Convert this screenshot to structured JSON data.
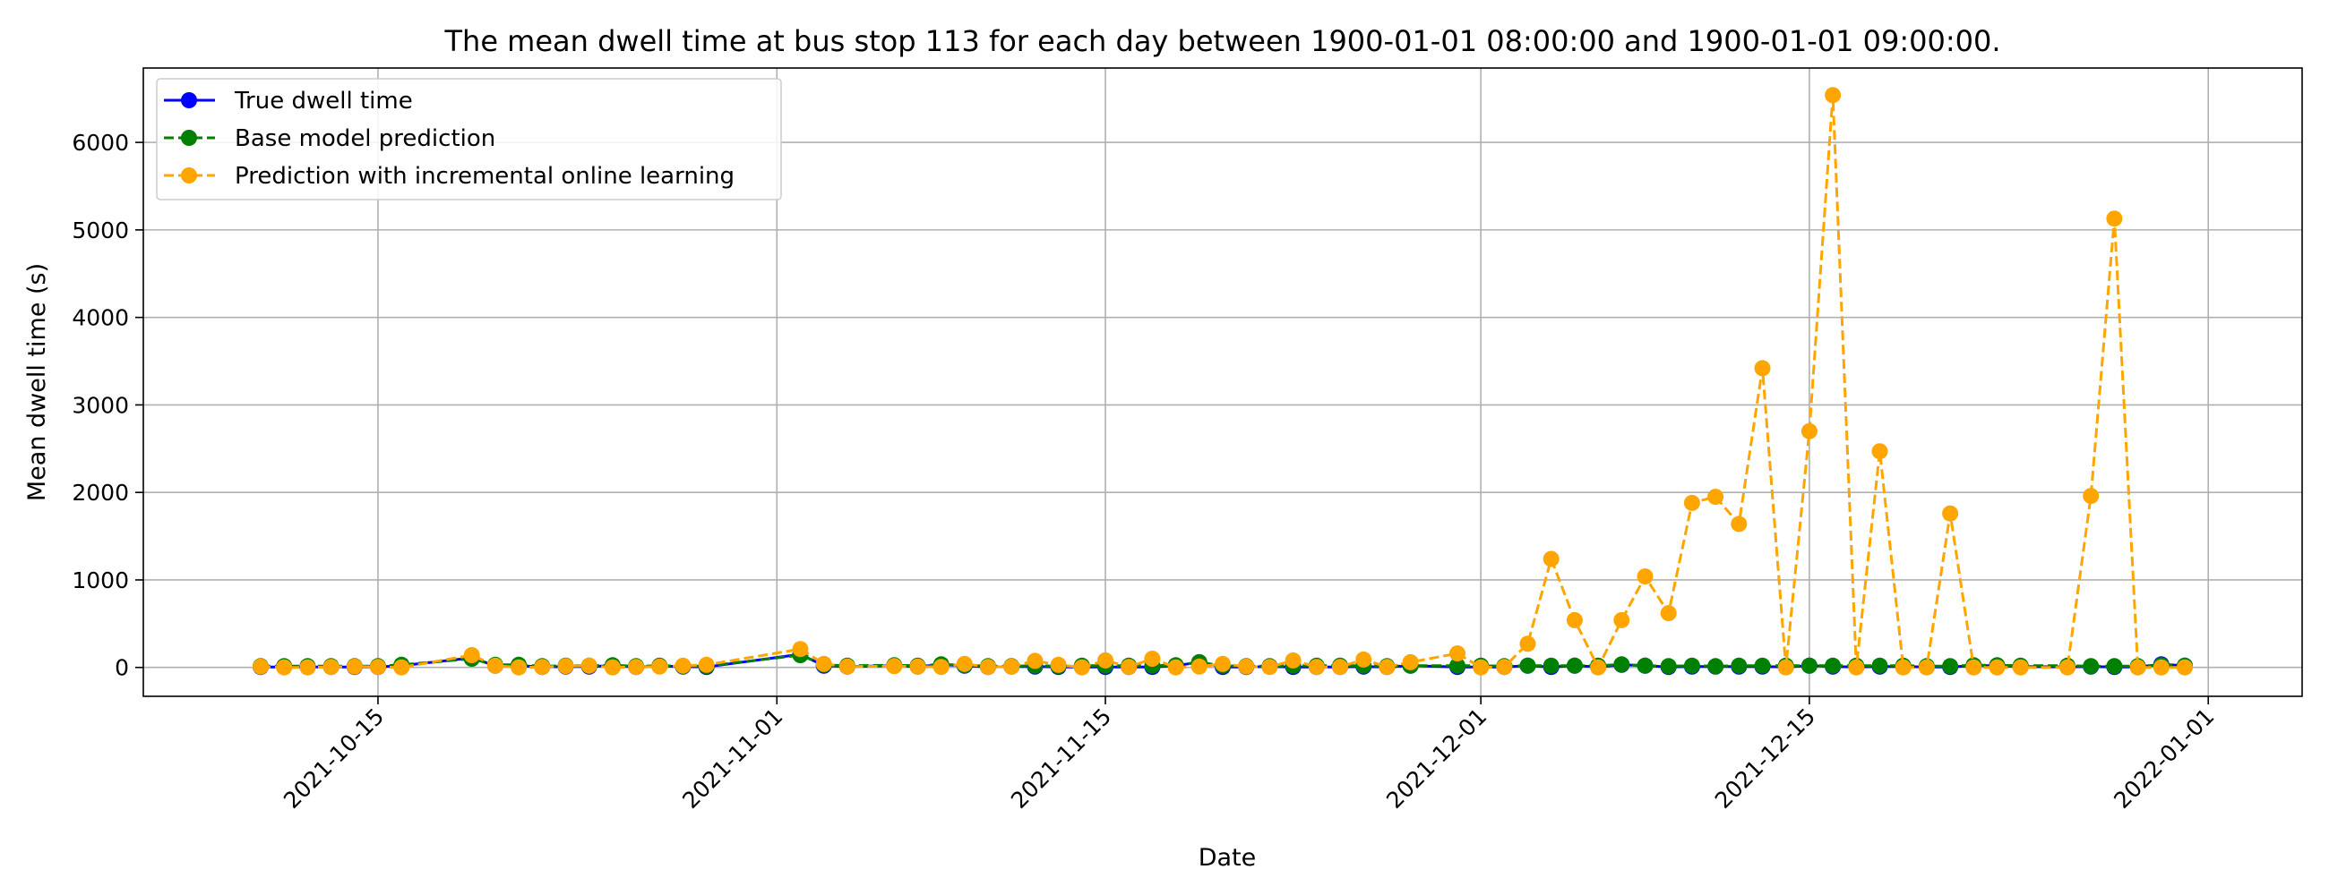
{
  "chart_data": {
    "type": "line",
    "title": "The mean dwell time at bus stop 113 for each day between 1900-01-01 08:00:00 and 1900-01-01 09:00:00.",
    "xlabel": "Date",
    "ylabel": "Mean dwell time (s)",
    "x_tick_labels": [
      "2021-10-15",
      "2021-11-01",
      "2021-11-15",
      "2021-12-01",
      "2021-12-15",
      "2022-01-01"
    ],
    "y_tick_labels": [
      "0",
      "1000",
      "2000",
      "3000",
      "4000",
      "5000",
      "6000"
    ],
    "xlim": [
      "2021-10-05",
      "2022-01-05"
    ],
    "ylim": [
      -330,
      6850
    ],
    "grid": true,
    "legend_position": "upper-left",
    "dates": [
      "2021-10-10",
      "2021-10-11",
      "2021-10-12",
      "2021-10-13",
      "2021-10-14",
      "2021-10-15",
      "2021-10-16",
      "2021-10-19",
      "2021-10-20",
      "2021-10-21",
      "2021-10-22",
      "2021-10-23",
      "2021-10-24",
      "2021-10-25",
      "2021-10-26",
      "2021-10-27",
      "2021-10-28",
      "2021-10-29",
      "2021-11-02",
      "2021-11-03",
      "2021-11-04",
      "2021-11-06",
      "2021-11-07",
      "2021-11-08",
      "2021-11-09",
      "2021-11-10",
      "2021-11-11",
      "2021-11-12",
      "2021-11-13",
      "2021-11-14",
      "2021-11-15",
      "2021-11-16",
      "2021-11-17",
      "2021-11-18",
      "2021-11-19",
      "2021-11-20",
      "2021-11-21",
      "2021-11-22",
      "2021-11-23",
      "2021-11-24",
      "2021-11-25",
      "2021-11-26",
      "2021-11-27",
      "2021-11-28",
      "2021-11-30",
      "2021-12-01",
      "2021-12-02",
      "2021-12-03",
      "2021-12-04",
      "2021-12-05",
      "2021-12-06",
      "2021-12-07",
      "2021-12-08",
      "2021-12-09",
      "2021-12-10",
      "2021-12-11",
      "2021-12-12",
      "2021-12-13",
      "2021-12-14",
      "2021-12-15",
      "2021-12-16",
      "2021-12-17",
      "2021-12-18",
      "2021-12-19",
      "2021-12-20",
      "2021-12-21",
      "2021-12-22",
      "2021-12-23",
      "2021-12-24",
      "2021-12-26",
      "2021-12-27",
      "2021-12-28",
      "2021-12-29",
      "2021-12-30",
      "2021-12-31"
    ],
    "series": [
      {
        "name": "True dwell time",
        "color": "#0000ff",
        "line_style": "solid",
        "marker": "circle",
        "values": [
          5,
          5,
          5,
          5,
          5,
          5,
          20,
          110,
          20,
          20,
          5,
          10,
          10,
          20,
          5,
          15,
          10,
          5,
          150,
          20,
          10,
          20,
          10,
          30,
          20,
          5,
          10,
          10,
          5,
          5,
          5,
          5,
          5,
          20,
          60,
          5,
          5,
          10,
          5,
          5,
          5,
          10,
          5,
          20,
          5,
          5,
          5,
          20,
          5,
          20,
          5,
          30,
          20,
          5,
          10,
          10,
          10,
          10,
          5,
          20,
          10,
          5,
          10,
          10,
          5,
          5,
          20,
          20,
          10,
          5,
          10,
          5,
          5,
          35,
          20
        ]
      },
      {
        "name": "Base model prediction",
        "color": "#008000",
        "line_style": "dashed",
        "marker": "circle",
        "values": [
          15,
          15,
          15,
          15,
          15,
          15,
          30,
          100,
          30,
          30,
          15,
          20,
          20,
          25,
          15,
          20,
          15,
          15,
          140,
          30,
          20,
          25,
          20,
          35,
          25,
          15,
          15,
          20,
          15,
          20,
          20,
          20,
          20,
          25,
          60,
          20,
          15,
          15,
          20,
          20,
          20,
          20,
          15,
          20,
          20,
          20,
          15,
          20,
          20,
          20,
          20,
          35,
          20,
          15,
          20,
          15,
          20,
          20,
          20,
          20,
          20,
          20,
          20,
          20,
          15,
          15,
          25,
          25,
          20,
          20,
          15,
          15,
          15,
          25,
          20
        ]
      },
      {
        "name": "Prediction with incremental online learning",
        "color": "#ffa500",
        "line_style": "dashed",
        "marker": "circle",
        "values": [
          10,
          0,
          0,
          5,
          10,
          5,
          0,
          140,
          20,
          0,
          5,
          15,
          20,
          0,
          5,
          10,
          20,
          30,
          210,
          40,
          10,
          15,
          10,
          5,
          40,
          5,
          10,
          75,
          30,
          0,
          80,
          5,
          100,
          0,
          10,
          40,
          10,
          5,
          80,
          5,
          5,
          90,
          5,
          60,
          160,
          0,
          5,
          270,
          1240,
          540,
          0,
          540,
          1040,
          620,
          1880,
          1950,
          1640,
          3420,
          0,
          2700,
          6540,
          0,
          2470,
          0,
          0,
          1760,
          0,
          0,
          0,
          0,
          1960,
          5130,
          0,
          0,
          0
        ]
      }
    ]
  }
}
